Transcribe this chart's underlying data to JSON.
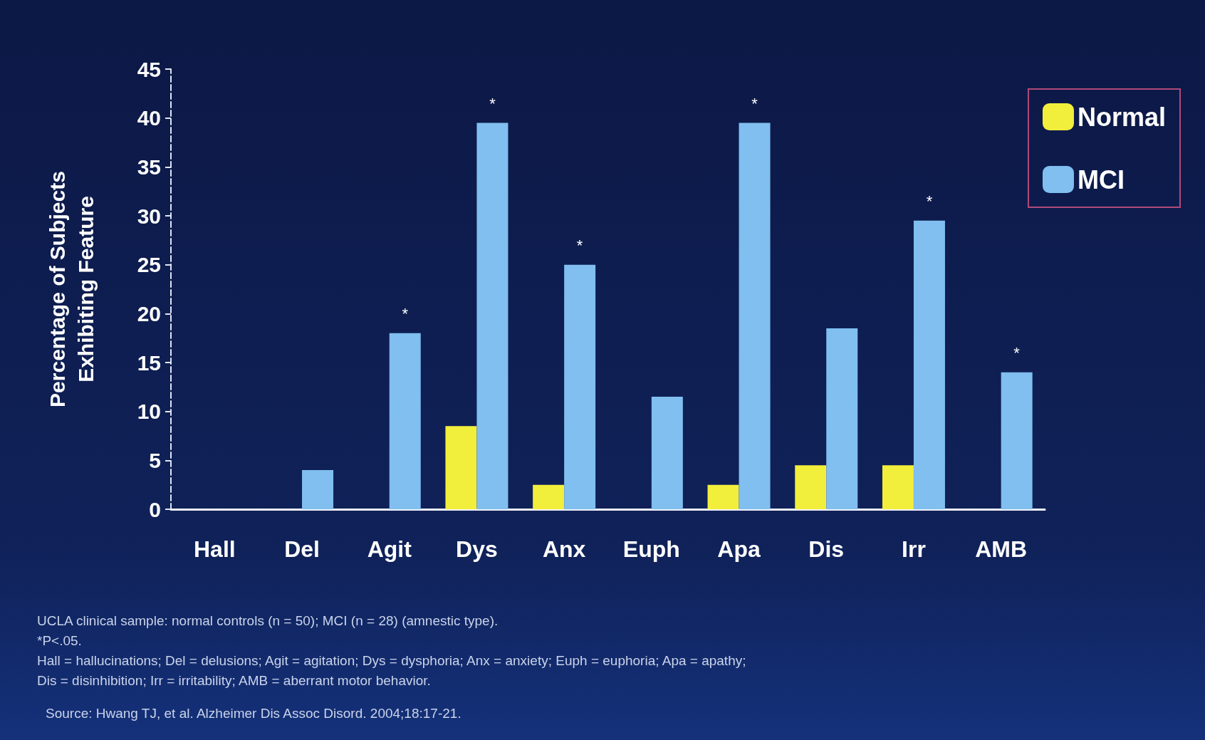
{
  "chart_data": {
    "type": "bar",
    "ylabel": "Percentage of Subjects\nExhibiting Feature",
    "categories": [
      "Hall",
      "Del",
      "Agit",
      "Dys",
      "Anx",
      "Euph",
      "Apa",
      "Dis",
      "Irr",
      "AMB"
    ],
    "series": [
      {
        "name": "Normal",
        "color": "#f2ee3c",
        "values": [
          0,
          0,
          0,
          8.5,
          2.5,
          0,
          2.5,
          4.5,
          4.5,
          0
        ]
      },
      {
        "name": "MCI",
        "color": "#80bff0",
        "values": [
          0,
          4,
          18,
          39.5,
          25,
          11.5,
          39.5,
          18.5,
          29.5,
          14
        ]
      }
    ],
    "ylim": [
      0,
      45
    ],
    "yticks": [
      0,
      5,
      10,
      15,
      20,
      25,
      30,
      35,
      40,
      45
    ],
    "grid": false,
    "legend": "top right",
    "annotations": [
      {
        "text": "*",
        "x": "Agit",
        "y": 18
      },
      {
        "text": "*",
        "x": "Dys",
        "y": 39.5
      },
      {
        "text": "*",
        "x": "Anx",
        "y": 25
      },
      {
        "text": "*",
        "x": "Apa",
        "y": 39.5
      },
      {
        "text": "*",
        "x": "Irr",
        "y": 29.5
      },
      {
        "text": "*",
        "x": "AMB",
        "y": 14
      },
      "UCLA clinical sample: normal controls (n = 50); MCI (n = 28) (amnestic type).",
      "*P<.05.",
      "Hall = hallucinations; Del = delusions; Agit = agitation; Dys = dysphoria; Anx = anxiety; Euph = euphoria; Apa = apathy;",
      "Dis = disinhibition; Irr = irritability; AMB = aberrant motor behavior.",
      "Source: Hwang TJ, et al. Alzheimer Dis Assoc Disord. 2004;18:17-21."
    ]
  }
}
